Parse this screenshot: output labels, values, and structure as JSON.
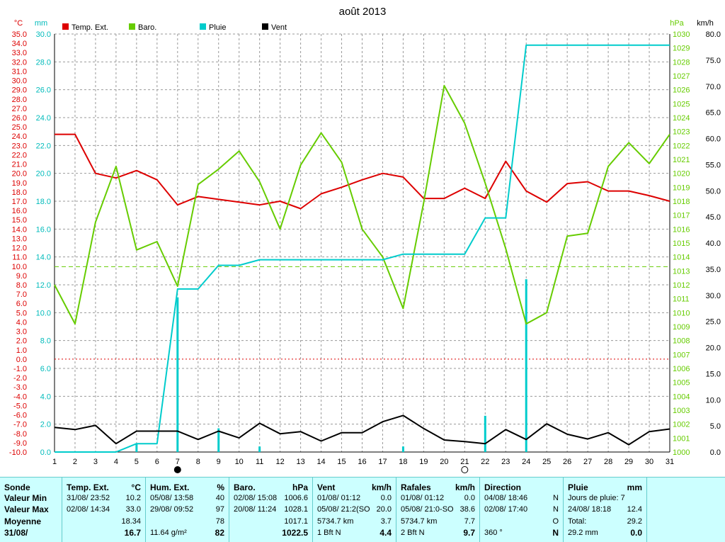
{
  "chart_data": {
    "type": "line",
    "title": "août 2013",
    "x": [
      1,
      2,
      3,
      4,
      5,
      6,
      7,
      8,
      9,
      10,
      11,
      12,
      13,
      14,
      15,
      16,
      17,
      18,
      19,
      20,
      21,
      22,
      23,
      24,
      25,
      26,
      27,
      28,
      29,
      30,
      31
    ],
    "axes": {
      "temp": {
        "unit": "°C",
        "range": [
          -10,
          35
        ],
        "step": 1
      },
      "rain": {
        "unit": "mm",
        "range": [
          0,
          30
        ],
        "step": 2
      },
      "baro": {
        "unit": "hPa",
        "range": [
          1000,
          1030
        ],
        "step": 1
      },
      "wind": {
        "unit": "km/h",
        "range": [
          0,
          80
        ],
        "step": 5
      }
    },
    "legend": [
      {
        "label": "Temp. Ext.",
        "color": "#dd0000"
      },
      {
        "label": "Baro.",
        "color": "#66cc00"
      },
      {
        "label": "Pluie",
        "color": "#00cccc"
      },
      {
        "label": "Vent",
        "color": "#000000"
      }
    ],
    "reference_lines": {
      "temp_zero": 0,
      "baro_mean": 1013.3
    },
    "series": [
      {
        "name": "Temp. Ext.",
        "axis": "temp",
        "color": "#dd0000",
        "values": [
          24.2,
          24.2,
          20.0,
          19.5,
          20.3,
          19.3,
          16.6,
          17.5,
          17.2,
          16.9,
          16.6,
          17.0,
          16.2,
          17.8,
          18.5,
          19.3,
          20.0,
          19.6,
          17.3,
          17.3,
          18.4,
          17.3,
          21.3,
          18.1,
          16.9,
          18.9,
          19.1,
          18.1,
          18.1,
          17.6,
          17.0
        ]
      },
      {
        "name": "Baro.",
        "axis": "baro",
        "color": "#66cc00",
        "values": [
          1012.0,
          1009.2,
          1016.5,
          1020.5,
          1014.5,
          1015.1,
          1011.9,
          1019.2,
          1020.3,
          1021.6,
          1019.4,
          1016.0,
          1020.6,
          1022.9,
          1020.8,
          1016.0,
          1014.0,
          1010.3,
          1017.9,
          1026.3,
          1023.6,
          1019.3,
          1014.6,
          1009.2,
          1010.0,
          1015.5,
          1015.7,
          1020.5,
          1022.2,
          1020.7,
          1022.8
        ]
      },
      {
        "name": "Pluie",
        "axis": "rain",
        "color": "#00cccc",
        "values": [
          0,
          0,
          0,
          0,
          0.6,
          0.6,
          11.7,
          11.7,
          13.4,
          13.4,
          13.8,
          13.8,
          13.8,
          13.8,
          13.8,
          13.8,
          13.8,
          14.2,
          14.2,
          14.2,
          14.2,
          16.8,
          16.8,
          29.2,
          29.2,
          29.2,
          29.2,
          29.2,
          29.2,
          29.2,
          29.2
        ]
      },
      {
        "name": "Pluie journalière",
        "axis": "rain",
        "color": "#00cccc",
        "kind": "bars",
        "values": [
          0,
          0,
          0,
          0,
          0.6,
          0,
          11.1,
          0,
          1.7,
          0,
          0.4,
          0,
          0,
          0,
          0,
          0,
          0,
          0.4,
          0,
          0,
          0,
          2.6,
          0,
          12.4,
          0,
          0,
          0,
          0,
          0,
          0,
          0
        ]
      },
      {
        "name": "Vent",
        "axis": "wind",
        "color": "#000000",
        "values": [
          4.7,
          4.3,
          5.1,
          1.6,
          4.0,
          4.0,
          4.0,
          2.4,
          4.0,
          2.7,
          5.5,
          3.5,
          3.9,
          2.1,
          3.7,
          3.7,
          5.8,
          7.0,
          4.5,
          2.3,
          2.0,
          1.6,
          4.3,
          2.4,
          5.4,
          3.4,
          2.5,
          3.7,
          1.4,
          3.9,
          4.4
        ]
      }
    ],
    "moon_markers": [
      {
        "x": 7,
        "phase": "new"
      },
      {
        "x": 21,
        "phase": "full"
      }
    ]
  },
  "summary": {
    "sonde": {
      "header": "Sonde",
      "rows": [
        "Valeur Min",
        "Valeur Max",
        "Moyenne",
        "31/08/"
      ]
    },
    "temp": {
      "header": "Temp. Ext.",
      "unit": "°C",
      "min": {
        "ts": "31/08/  23:52",
        "val": "10.2"
      },
      "max": {
        "ts": "02/08/  14:34",
        "val": "33.0"
      },
      "mean": "18.34",
      "current": "16.7"
    },
    "hum": {
      "header": "Hum. Ext.",
      "unit": "%",
      "min": {
        "ts": "05/08/  13:58",
        "val": "40"
      },
      "max": {
        "ts": "29/08/  09:52",
        "val": "97"
      },
      "mean": "78",
      "current_note": "11.64 g/m²",
      "current": "82"
    },
    "baro": {
      "header": "Baro.",
      "unit": "hPa",
      "min": {
        "ts": "02/08/  15:08",
        "val": "1006.6"
      },
      "max": {
        "ts": "20/08/  11:24",
        "val": "1028.1"
      },
      "mean": "1017.1",
      "current": "1022.5"
    },
    "vent": {
      "header": "Vent",
      "unit": "km/h",
      "min": {
        "ts": "01/08/  01:12",
        "val": "0.0"
      },
      "max": {
        "ts": "05/08/  21:2(SO",
        "val": "20.0"
      },
      "mean_note": "5734.7 km",
      "mean": "3.7",
      "current_note": "1 Bft N",
      "current": "4.4"
    },
    "rafales": {
      "header": "Rafales",
      "unit": "km/h",
      "min": {
        "ts": "01/08/  01:12",
        "val": "0.0"
      },
      "max": {
        "ts": "05/08/  21:0-SO",
        "val": "38.6"
      },
      "mean_note": "5734.7 km",
      "mean": "7.7",
      "current_note": "2 Bft N",
      "current": "9.7"
    },
    "direction": {
      "header": "Direction",
      "min": {
        "ts": "04/08/  18:46",
        "val": "N"
      },
      "max": {
        "ts": "02/08/  17:40",
        "val": "N"
      },
      "mean": "O",
      "current_note": "360 °",
      "current": "N"
    },
    "pluie": {
      "header": "Pluie",
      "unit": "mm",
      "min": {
        "ts": "Jours de pluie: 7",
        "val": ""
      },
      "max": {
        "ts": "24/08/  18:18",
        "val": "12.4"
      },
      "mean_note": "Total:",
      "mean": "29.2",
      "current_note": "29.2 mm",
      "current": "0.0"
    }
  }
}
